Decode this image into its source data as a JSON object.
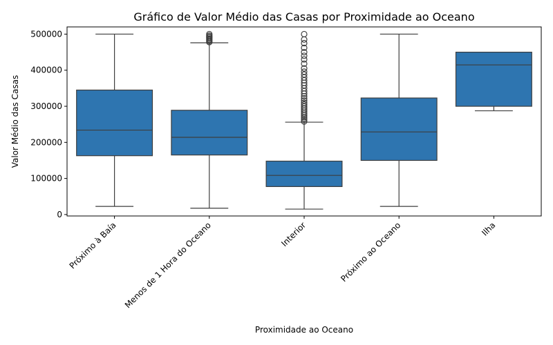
{
  "chart_data": {
    "type": "box",
    "title": "Gráfico de Valor Médio das Casas por Proximidade ao Oceano",
    "xlabel": "Proximidade ao Oceano",
    "ylabel": "Valor Médio das Casas",
    "ylim": [
      -4000,
      520000
    ],
    "yticks": [
      0,
      100000,
      200000,
      300000,
      400000,
      500000
    ],
    "grid": false,
    "legend": "none",
    "box_color": "#2e75b0",
    "line_color": "#3d3d3d",
    "categories": [
      {
        "label": "Próximo à Baía",
        "whisker_low": 22500,
        "q1": 163000,
        "median": 234000,
        "q3": 345000,
        "whisker_high": 500000,
        "outliers": []
      },
      {
        "label": "Menos de 1 Hora do Oceano",
        "whisker_low": 17500,
        "q1": 165000,
        "median": 214000,
        "q3": 289000,
        "whisker_high": 476000,
        "outliers": [
          478000,
          481000,
          484000,
          487000,
          490000,
          493000,
          496000,
          500000
        ]
      },
      {
        "label": "Interior",
        "whisker_low": 15000,
        "q1": 77500,
        "median": 108500,
        "q3": 148000,
        "whisker_high": 256000,
        "outliers": [
          258000,
          262000,
          266000,
          270000,
          275000,
          280000,
          285000,
          290000,
          295000,
          300000,
          305000,
          310000,
          316000,
          322000,
          328000,
          335000,
          342000,
          350000,
          358000,
          365000,
          372000,
          380000,
          388000,
          396000,
          405000,
          418000,
          430000,
          440000,
          450000,
          462000,
          475000,
          485000,
          500000
        ]
      },
      {
        "label": "Próximo ao Oceano",
        "whisker_low": 22500,
        "q1": 150000,
        "median": 229000,
        "q3": 323000,
        "whisker_high": 500000,
        "outliers": []
      },
      {
        "label": "Ilha",
        "whisker_low": 287500,
        "q1": 300000,
        "median": 414700,
        "q3": 450000,
        "whisker_high": 450000,
        "outliers": []
      }
    ]
  }
}
